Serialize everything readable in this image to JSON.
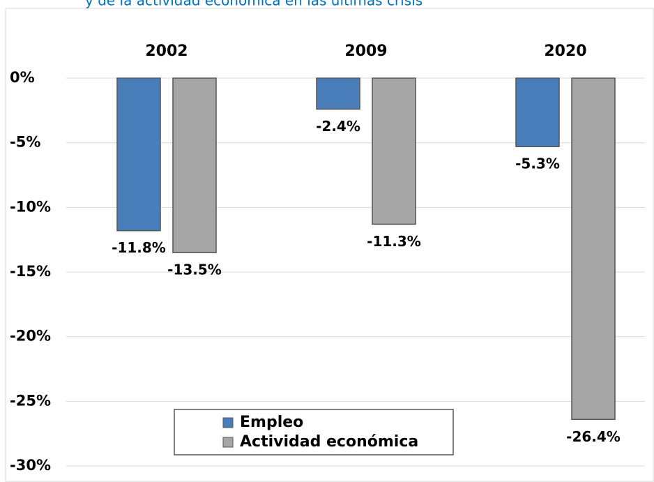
{
  "chart_data": {
    "type": "bar",
    "title": "y de la actividad económica en las últimas crisis",
    "categories": [
      "2002",
      "2009",
      "2020"
    ],
    "series": [
      {
        "name": "Empleo",
        "color": "#4a7ebb",
        "values": [
          -11.8,
          -2.4,
          -5.3
        ],
        "value_labels": [
          "-11.8%",
          "-2.4%",
          "-5.3%"
        ]
      },
      {
        "name": "Actividad económica",
        "color": "#a6a6a6",
        "values": [
          -13.5,
          -11.3,
          -26.4
        ],
        "value_labels": [
          "-13.5%",
          "-11.3%",
          "-26.4%"
        ]
      }
    ],
    "ylim": [
      -30,
      0
    ],
    "yticks": [
      {
        "value": 0,
        "label": "0%"
      },
      {
        "value": -5,
        "label": "-5%"
      },
      {
        "value": -10,
        "label": "-10%"
      },
      {
        "value": -15,
        "label": "-15%"
      },
      {
        "value": -20,
        "label": "-20%"
      },
      {
        "value": -25,
        "label": "-25%"
      },
      {
        "value": -30,
        "label": "-30%"
      }
    ],
    "grid": true
  }
}
